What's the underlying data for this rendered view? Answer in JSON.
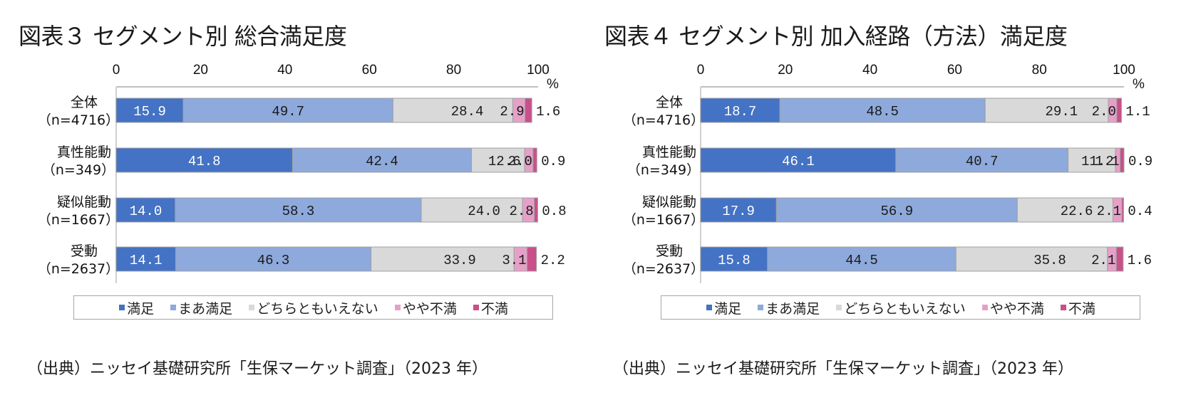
{
  "charts": [
    {
      "title": "図表３ セグメント別 総合満足度",
      "source": "（出典）ニッセイ基礎研究所「生保マーケット調査」（2023 年）"
    },
    {
      "title": "図表４ セグメント別 加入経路（方法）満足度",
      "source": "（出典）ニッセイ基礎研究所「生保マーケット調査」（2023 年）"
    }
  ],
  "legend": [
    "満足",
    "まあ満足",
    "どちらともいえない",
    "やや不満",
    "不満"
  ],
  "colors": [
    "#4472C4",
    "#8EA9DB",
    "#D9D9D9",
    "#E6A0C8",
    "#C9508A"
  ],
  "label_colors": [
    "#ffffff",
    "#1a1a1a",
    "#1a1a1a",
    "#1a1a1a",
    "#1a1a1a"
  ],
  "chart_data": [
    {
      "type": "bar",
      "orientation": "horizontal-stacked-100",
      "title": "図表３ セグメント別 総合満足度",
      "xlabel": "%",
      "ylabel": "",
      "xlim": [
        0,
        100
      ],
      "xticks": [
        "0",
        "20",
        "40",
        "60",
        "80",
        "100"
      ],
      "unit_label": "%",
      "legend_position": "bottom",
      "categories": [
        {
          "name": "全体",
          "n": "（n=4716）"
        },
        {
          "name": "真性能動",
          "n": "（n=349）"
        },
        {
          "name": "疑似能動",
          "n": "（n=1667）"
        },
        {
          "name": "受動",
          "n": "（n=2637）"
        }
      ],
      "series": [
        {
          "name": "満足",
          "values": [
            15.9,
            41.8,
            14.0,
            14.1
          ]
        },
        {
          "name": "まあ満足",
          "values": [
            49.7,
            42.4,
            58.3,
            46.3
          ]
        },
        {
          "name": "どちらともいえない",
          "values": [
            28.4,
            12.6,
            24.0,
            33.9
          ]
        },
        {
          "name": "やや不満",
          "values": [
            2.9,
            2.0,
            2.8,
            3.1
          ]
        },
        {
          "name": "不満",
          "values": [
            1.6,
            0.9,
            0.8,
            2.2
          ]
        }
      ]
    },
    {
      "type": "bar",
      "orientation": "horizontal-stacked-100",
      "title": "図表４ セグメント別 加入経路（方法）満足度",
      "xlabel": "%",
      "ylabel": "",
      "xlim": [
        0,
        100
      ],
      "xticks": [
        "0",
        "20",
        "40",
        "60",
        "80",
        "100"
      ],
      "unit_label": "%",
      "legend_position": "bottom",
      "categories": [
        {
          "name": "全体",
          "n": "（n=4716）"
        },
        {
          "name": "真性能動",
          "n": "（n=349）"
        },
        {
          "name": "疑似能動",
          "n": "（n=1667）"
        },
        {
          "name": "受動",
          "n": "（n=2637）"
        }
      ],
      "series": [
        {
          "name": "満足",
          "values": [
            18.7,
            46.1,
            17.9,
            15.8
          ]
        },
        {
          "name": "まあ満足",
          "values": [
            48.5,
            40.7,
            56.9,
            44.5
          ]
        },
        {
          "name": "どちらともいえない",
          "values": [
            29.1,
            11.2,
            22.6,
            35.8
          ]
        },
        {
          "name": "やや不満",
          "values": [
            2.0,
            1.1,
            2.1,
            2.1
          ]
        },
        {
          "name": "不満",
          "values": [
            1.1,
            0.9,
            0.4,
            1.6
          ]
        }
      ]
    }
  ]
}
